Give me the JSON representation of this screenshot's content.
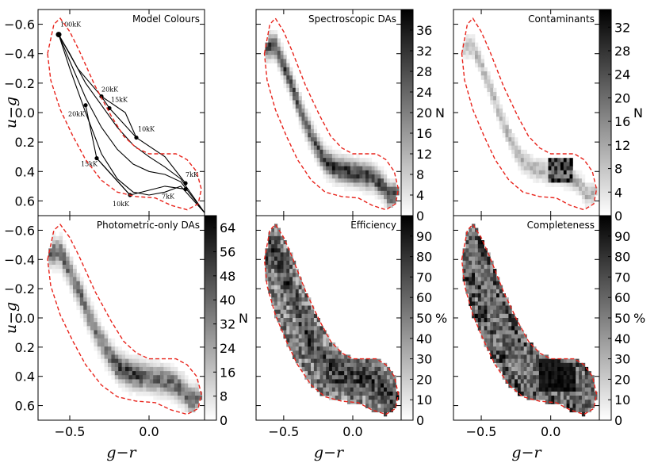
{
  "chart_data": [
    {
      "type": "line",
      "title": "Model Colours",
      "ylabel": "u−g",
      "xlim": [
        -0.7,
        0.35
      ],
      "ylim": [
        0.7,
        -0.7
      ],
      "xticks": [
        "−0.5",
        "0.0"
      ],
      "yticks": [
        "−0.6",
        "−0.4",
        "−0.2",
        "0.0",
        "0.2",
        "0.4",
        "0.6"
      ],
      "series": [
        {
          "name": "",
          "x": [
            -0.57,
            -0.5,
            -0.4,
            -0.3,
            -0.2,
            -0.1,
            0.0,
            0.1,
            0.2,
            0.35
          ],
          "y": [
            -0.53,
            -0.4,
            -0.2,
            -0.05,
            0.1,
            0.22,
            0.3,
            0.37,
            0.45,
            0.68
          ]
        },
        {
          "name": "",
          "x": [
            -0.57,
            -0.5,
            -0.4,
            -0.3,
            -0.2,
            -0.1,
            0.0,
            0.1,
            0.2,
            0.35
          ],
          "y": [
            -0.53,
            -0.35,
            -0.1,
            0.1,
            0.25,
            0.35,
            0.4,
            0.42,
            0.47,
            0.68
          ]
        },
        {
          "name": "",
          "x": [
            -0.57,
            -0.5,
            -0.4,
            -0.3,
            -0.2,
            -0.1,
            0.0,
            0.1,
            0.2,
            0.35
          ],
          "y": [
            -0.53,
            -0.3,
            0.0,
            0.28,
            0.45,
            0.54,
            0.56,
            0.54,
            0.5,
            0.68
          ]
        }
      ],
      "points": [
        {
          "label": "100kK",
          "x": -0.57,
          "y": -0.53
        },
        {
          "label": "20kK",
          "x": -0.3,
          "y": -0.11
        },
        {
          "label": "15kK",
          "x": -0.25,
          "y": -0.03
        },
        {
          "label": "10kK",
          "x": -0.08,
          "y": 0.17
        },
        {
          "label": "20kK",
          "x": -0.4,
          "y": -0.05
        },
        {
          "label": "15kK",
          "x": -0.33,
          "y": 0.31
        },
        {
          "label": "10kK",
          "x": -0.12,
          "y": 0.56
        },
        {
          "label": "7kK",
          "x": 0.23,
          "y": 0.48
        },
        {
          "label": "7kK",
          "x": 0.23,
          "y": 0.52
        }
      ]
    },
    {
      "type": "heatmap",
      "title": "Spectroscopic DAs",
      "colorbar_label": "N",
      "colorbar_range": [
        0,
        40
      ],
      "colorbar_ticks": [
        "0",
        "4",
        "8",
        "12",
        "16",
        "20",
        "24",
        "28",
        "32",
        "36"
      ]
    },
    {
      "type": "heatmap",
      "title": "Contaminants",
      "colorbar_label": "N",
      "colorbar_range": [
        0,
        35
      ],
      "colorbar_ticks": [
        "0",
        "4",
        "8",
        "12",
        "16",
        "20",
        "24",
        "28",
        "32"
      ]
    },
    {
      "type": "heatmap",
      "title": "Photometric-only DAs",
      "xlabel": "g−r",
      "ylabel": "u−g",
      "colorbar_label": "N",
      "colorbar_range": [
        0,
        68
      ],
      "colorbar_ticks": [
        "0",
        "8",
        "16",
        "24",
        "32",
        "40",
        "48",
        "56",
        "64"
      ]
    },
    {
      "type": "heatmap",
      "title": "Efficiency",
      "xlabel": "g−r",
      "colorbar_label": "%",
      "colorbar_range": [
        0,
        100
      ],
      "colorbar_ticks": [
        "0",
        "10",
        "20",
        "30",
        "40",
        "50",
        "60",
        "70",
        "80",
        "90"
      ]
    },
    {
      "type": "heatmap",
      "title": "Completeness",
      "xlabel": "g−r",
      "colorbar_label": "%",
      "colorbar_range": [
        0,
        100
      ],
      "colorbar_ticks": [
        "0",
        "10",
        "20",
        "30",
        "40",
        "50",
        "60",
        "70",
        "80",
        "90"
      ]
    }
  ],
  "selection_region_color": "#e8241c",
  "curve_color": "#000000",
  "colormap": "gray_r"
}
